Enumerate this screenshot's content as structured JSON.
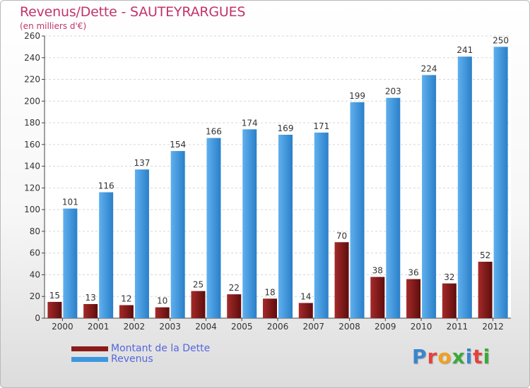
{
  "title": "Revenus/Dette - SAUTEYRARGUES",
  "subtitle": "(en milliers d'€)",
  "legend": {
    "debt_label": "Montant de la Dette",
    "revenue_label": "Revenus"
  },
  "logo": {
    "letters": [
      {
        "ch": "P",
        "color": "#3a86cc"
      },
      {
        "ch": "r",
        "color": "#e2433c"
      },
      {
        "ch": "o",
        "color": "#f0a020"
      },
      {
        "ch": "x",
        "color": "#3aaa3a"
      },
      {
        "ch": "i",
        "color": "#3a86cc"
      },
      {
        "ch": "t",
        "color": "#e2433c"
      },
      {
        "ch": "i",
        "color": "#3aaa3a"
      }
    ]
  },
  "colors": {
    "debt": "#8b1a1a",
    "revenue": "#3d97df",
    "title": "#c2336a"
  },
  "chart_data": {
    "type": "bar",
    "title": "Revenus/Dette - SAUTEYRARGUES",
    "subtitle": "(en milliers d'€)",
    "categories": [
      "2000",
      "2001",
      "2002",
      "2003",
      "2004",
      "2005",
      "2006",
      "2007",
      "2008",
      "2009",
      "2010",
      "2011",
      "2012"
    ],
    "series": [
      {
        "name": "Montant de la Dette",
        "values": [
          15,
          13,
          12,
          10,
          25,
          22,
          18,
          14,
          70,
          38,
          36,
          32,
          52
        ]
      },
      {
        "name": "Revenus",
        "values": [
          101,
          116,
          137,
          154,
          166,
          174,
          169,
          171,
          199,
          203,
          224,
          241,
          250
        ]
      }
    ],
    "ylim": [
      0,
      260
    ],
    "yticks": [
      0,
      20,
      40,
      60,
      80,
      100,
      120,
      140,
      160,
      180,
      200,
      220,
      240,
      260
    ],
    "grid": true,
    "legend_position": "bottom-left"
  }
}
